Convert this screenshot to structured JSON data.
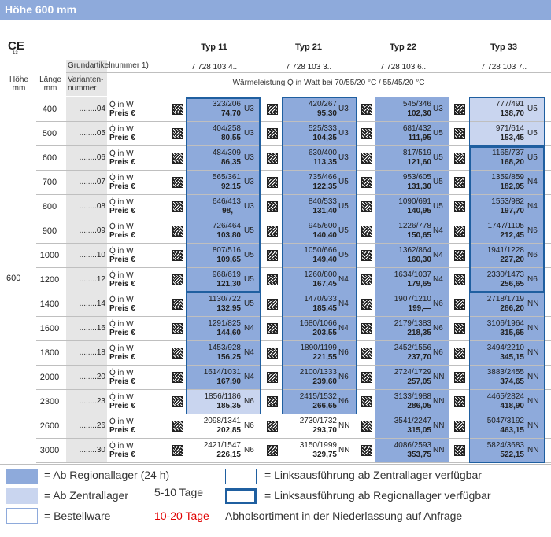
{
  "header": {
    "title": "Höhe 600 mm"
  },
  "ce": {
    "mark": "CE",
    "sub": "13"
  },
  "types": [
    "Typ 11",
    "Typ 21",
    "Typ 22",
    "Typ 33"
  ],
  "grund_label": "Grundartikelnummer 1)",
  "grund_numbers": [
    "7 728 103 4..",
    "7 728 103 3..",
    "7 728 103 6..",
    "7 728 103 7.."
  ],
  "col_headers": {
    "hoehe": "Höhe mm",
    "laenge": "Länge mm",
    "variante": "Varianten-nummer",
    "waerme": "Wärmeleistung Q̇ in Watt bei 70/55/20 °C / 55/45/20 °C"
  },
  "labels": {
    "q": "Q̇ in W",
    "preis": "Preis €"
  },
  "hoehe_value": "600",
  "colors": {
    "region": "#8eaadb",
    "zentral": "#c9d5ef",
    "box": "#1f5fa0"
  },
  "rows": [
    {
      "len": "400",
      "var": "........04",
      "c": [
        [
          "323/206",
          "74,70",
          "U3"
        ],
        [
          "420/267",
          "95,30",
          "U3"
        ],
        [
          "545/346",
          "102,30",
          "U3"
        ],
        [
          "777/491",
          "138,70",
          "U5"
        ]
      ]
    },
    {
      "len": "500",
      "var": "........05",
      "c": [
        [
          "404/258",
          "80,55",
          "U3"
        ],
        [
          "525/333",
          "104,35",
          "U3"
        ],
        [
          "681/432",
          "111,95",
          "U5"
        ],
        [
          "971/614",
          "153,45",
          "U5"
        ]
      ]
    },
    {
      "len": "600",
      "var": "........06",
      "c": [
        [
          "484/309",
          "86,35",
          "U3"
        ],
        [
          "630/400",
          "113,35",
          "U3"
        ],
        [
          "817/519",
          "121,60",
          "U5"
        ],
        [
          "1165/737",
          "168,20",
          "U5"
        ]
      ]
    },
    {
      "len": "700",
      "var": "........07",
      "c": [
        [
          "565/361",
          "92,15",
          "U3"
        ],
        [
          "735/466",
          "122,35",
          "U5"
        ],
        [
          "953/605",
          "131,30",
          "U5"
        ],
        [
          "1359/859",
          "182,95",
          "N4"
        ]
      ]
    },
    {
      "len": "800",
      "var": "........08",
      "c": [
        [
          "646/413",
          "98,—",
          "U3"
        ],
        [
          "840/533",
          "131,40",
          "U5"
        ],
        [
          "1090/691",
          "140,95",
          "U5"
        ],
        [
          "1553/982",
          "197,70",
          "N4"
        ]
      ]
    },
    {
      "len": "900",
      "var": "........09",
      "c": [
        [
          "726/464",
          "103,80",
          "U5"
        ],
        [
          "945/600",
          "140,40",
          "U5"
        ],
        [
          "1226/778",
          "150,65",
          "N4"
        ],
        [
          "1747/1105",
          "212,45",
          "N6"
        ]
      ]
    },
    {
      "len": "1000",
      "var": "........10",
      "c": [
        [
          "807/516",
          "109,65",
          "U5"
        ],
        [
          "1050/666",
          "149,40",
          "U5"
        ],
        [
          "1362/864",
          "160,30",
          "N4"
        ],
        [
          "1941/1228",
          "227,20",
          "N6"
        ]
      ]
    },
    {
      "len": "1200",
      "var": "........12",
      "c": [
        [
          "968/619",
          "121,30",
          "U5"
        ],
        [
          "1260/800",
          "167,45",
          "N4"
        ],
        [
          "1634/1037",
          "179,65",
          "N4"
        ],
        [
          "2330/1473",
          "256,65",
          "N6"
        ]
      ]
    },
    {
      "len": "1400",
      "var": "........14",
      "c": [
        [
          "1130/722",
          "132,95",
          "U5"
        ],
        [
          "1470/933",
          "185,45",
          "N4"
        ],
        [
          "1907/1210",
          "199,—",
          "N6"
        ],
        [
          "2718/1719",
          "286,20",
          "NN"
        ]
      ]
    },
    {
      "len": "1600",
      "var": "........16",
      "c": [
        [
          "1291/825",
          "144,60",
          "N4"
        ],
        [
          "1680/1066",
          "203,55",
          "N4"
        ],
        [
          "2179/1383",
          "218,35",
          "N6"
        ],
        [
          "3106/1964",
          "315,65",
          "NN"
        ]
      ]
    },
    {
      "len": "1800",
      "var": "........18",
      "c": [
        [
          "1453/928",
          "156,25",
          "N4"
        ],
        [
          "1890/1199",
          "221,55",
          "N6"
        ],
        [
          "2452/1556",
          "237,70",
          "N6"
        ],
        [
          "3494/2210",
          "345,15",
          "NN"
        ]
      ]
    },
    {
      "len": "2000",
      "var": "........20",
      "c": [
        [
          "1614/1031",
          "167,90",
          "N4"
        ],
        [
          "2100/1333",
          "239,60",
          "N6"
        ],
        [
          "2724/1729",
          "257,05",
          "NN"
        ],
        [
          "3883/2455",
          "374,65",
          "NN"
        ]
      ]
    },
    {
      "len": "2300",
      "var": "........23",
      "c": [
        [
          "1856/1186",
          "185,35",
          "N6"
        ],
        [
          "2415/1532",
          "266,65",
          "N6"
        ],
        [
          "3133/1988",
          "286,05",
          "NN"
        ],
        [
          "4465/2824",
          "418,90",
          "NN"
        ]
      ]
    },
    {
      "len": "2600",
      "var": "........26",
      "c": [
        [
          "2098/1341",
          "202,85",
          "N6"
        ],
        [
          "2730/1732",
          "293,70",
          "NN"
        ],
        [
          "3541/2247",
          "315,05",
          "NN"
        ],
        [
          "5047/3192",
          "463,15",
          "NN"
        ]
      ]
    },
    {
      "len": "3000",
      "var": "........30",
      "c": [
        [
          "2421/1547",
          "226,15",
          "N6"
        ],
        [
          "3150/1999",
          "329,75",
          "NN"
        ],
        [
          "4086/2593",
          "353,75",
          "NN"
        ],
        [
          "5824/3683",
          "522,15",
          "NN"
        ]
      ]
    }
  ],
  "fills": [
    [
      "R",
      "R",
      "R",
      "Z"
    ],
    [
      "R",
      "R",
      "R",
      "Z"
    ],
    [
      "R",
      "R",
      "R",
      "R"
    ],
    [
      "R",
      "R",
      "R",
      "R"
    ],
    [
      "R",
      "R",
      "R",
      "R"
    ],
    [
      "R",
      "R",
      "R",
      "R"
    ],
    [
      "R",
      "R",
      "R",
      "R"
    ],
    [
      "R",
      "R",
      "R",
      "R"
    ],
    [
      "R",
      "R",
      "R",
      "R"
    ],
    [
      "R",
      "R",
      "R",
      "R"
    ],
    [
      "R",
      "R",
      "R",
      "R"
    ],
    [
      "R",
      "R",
      "R",
      "R"
    ],
    [
      "Z",
      "R",
      "R",
      "R"
    ],
    [
      "W",
      "W",
      "R",
      "R"
    ],
    [
      "W",
      "W",
      "R",
      "R"
    ]
  ],
  "legend": {
    "region": "= Ab Regionallager (24 h)",
    "zentral": "= Ab Zentrallager",
    "zentral_days": "5-10 Tage",
    "bestell": "= Bestellware",
    "bestell_days": "10-20 Tage",
    "bestell_note": "Abholsortiment in der Niederlassung auf Anfrage",
    "links_zentral": "= Linksausführung ab Zentrallager verfügbar",
    "links_region": "= Linksausführung ab Regionallager verfügbar"
  }
}
